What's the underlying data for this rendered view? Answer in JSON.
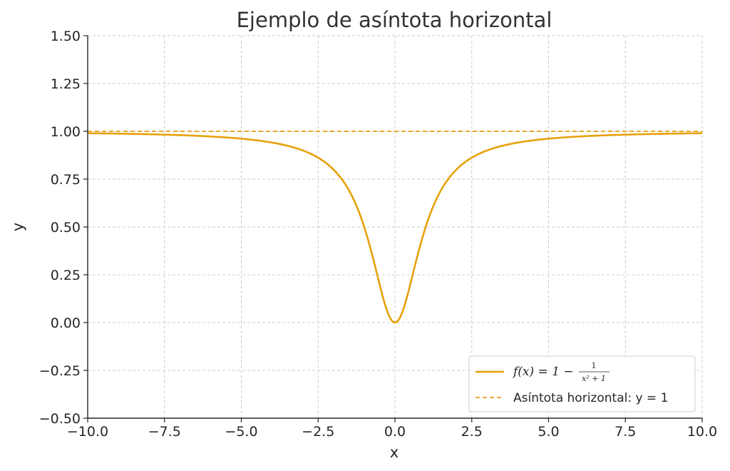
{
  "chart_data": {
    "type": "line",
    "title": "Ejemplo de asíntota horizontal",
    "xlabel": "x",
    "ylabel": "y",
    "xlim": [
      -10,
      10
    ],
    "ylim": [
      -0.5,
      1.5
    ],
    "grid": true,
    "legend_placement": "bottom-right",
    "x_ticks": [
      -10.0,
      -7.5,
      -5.0,
      -2.5,
      0.0,
      2.5,
      5.0,
      7.5,
      10.0
    ],
    "x_tick_labels": [
      "−10.0",
      "−7.5",
      "−5.0",
      "−2.5",
      "0.0",
      "2.5",
      "5.0",
      "7.5",
      "10.0"
    ],
    "y_ticks": [
      -0.5,
      -0.25,
      0.0,
      0.25,
      0.5,
      0.75,
      1.0,
      1.25,
      1.5
    ],
    "y_tick_labels": [
      "−0.50",
      "−0.25",
      "0.00",
      "0.25",
      "0.50",
      "0.75",
      "1.00",
      "1.25",
      "1.50"
    ],
    "series": [
      {
        "name": "f(x) = 1 − 1/(x² + 1)",
        "style": "solid",
        "color": "#e6a10a",
        "x": [
          -10,
          -9,
          -8,
          -7,
          -6,
          -5,
          -4,
          -3,
          -2.5,
          -2,
          -1.5,
          -1.25,
          -1,
          -0.75,
          -0.5,
          -0.25,
          0,
          0.25,
          0.5,
          0.75,
          1,
          1.25,
          1.5,
          2,
          2.5,
          3,
          4,
          5,
          6,
          7,
          8,
          9,
          10
        ],
        "y": [
          0.99,
          0.988,
          0.985,
          0.98,
          0.973,
          0.962,
          0.941,
          0.9,
          0.862,
          0.8,
          0.692,
          0.61,
          0.5,
          0.36,
          0.2,
          0.059,
          0.0,
          0.059,
          0.2,
          0.36,
          0.5,
          0.61,
          0.692,
          0.8,
          0.862,
          0.9,
          0.941,
          0.962,
          0.973,
          0.98,
          0.985,
          0.988,
          0.99
        ]
      },
      {
        "name": "Asíntota horizontal: y = 1",
        "style": "dashed",
        "color": "#e6a10a",
        "x": [
          -10,
          10
        ],
        "y": [
          1,
          1
        ]
      }
    ]
  },
  "legend": {
    "entries": [
      {
        "label_prefix": "f(x) = 1 − ",
        "frac_num": "1",
        "frac_den": "x² + 1"
      },
      {
        "label": "Asíntota horizontal: y = 1"
      }
    ]
  }
}
